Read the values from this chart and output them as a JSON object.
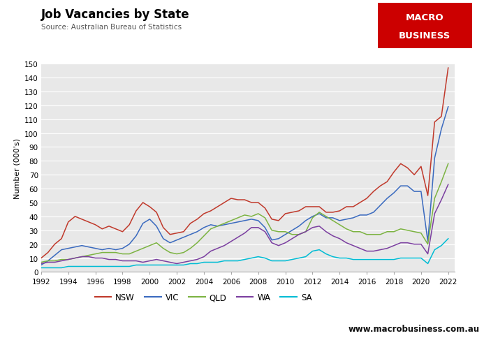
{
  "title": "Job Vacancies by State",
  "subtitle": "Source: Australian Bureau of Statistics",
  "ylabel": "Number (000's)",
  "website": "www.macrobusiness.com.au",
  "fig_bg_color": "#ffffff",
  "plot_bg_color": "#e8e8e8",
  "ylim": [
    0,
    150
  ],
  "yticks": [
    0,
    10,
    20,
    30,
    40,
    50,
    60,
    70,
    80,
    90,
    100,
    110,
    120,
    130,
    140,
    150
  ],
  "colors": {
    "NSW": "#c0392b",
    "VIC": "#3a6abf",
    "QLD": "#7cb342",
    "WA": "#7b3fa0",
    "SA": "#00bcd4"
  },
  "series": {
    "NSW": {
      "years": [
        1992.0,
        1992.5,
        1993.0,
        1993.5,
        1994.0,
        1994.5,
        1995.0,
        1995.5,
        1996.0,
        1996.5,
        1997.0,
        1997.5,
        1998.0,
        1998.5,
        1999.0,
        1999.5,
        2000.0,
        2000.5,
        2001.0,
        2001.5,
        2002.0,
        2002.5,
        2003.0,
        2003.5,
        2004.0,
        2004.5,
        2005.0,
        2005.5,
        2006.0,
        2006.5,
        2007.0,
        2007.5,
        2008.0,
        2008.5,
        2009.0,
        2009.5,
        2010.0,
        2010.5,
        2011.0,
        2011.5,
        2012.0,
        2012.5,
        2013.0,
        2013.5,
        2014.0,
        2014.5,
        2015.0,
        2015.5,
        2016.0,
        2016.5,
        2017.0,
        2017.5,
        2018.0,
        2018.5,
        2019.0,
        2019.5,
        2020.0,
        2020.5,
        2021.0,
        2021.5,
        2022.0
      ],
      "values": [
        10,
        14,
        20,
        24,
        36,
        40,
        38,
        36,
        34,
        31,
        33,
        31,
        29,
        34,
        44,
        50,
        47,
        43,
        32,
        27,
        28,
        29,
        35,
        38,
        42,
        44,
        47,
        50,
        53,
        52,
        52,
        50,
        50,
        46,
        38,
        37,
        42,
        43,
        44,
        47,
        47,
        47,
        43,
        43,
        44,
        47,
        47,
        50,
        53,
        58,
        62,
        65,
        72,
        78,
        75,
        70,
        76,
        55,
        108,
        112,
        147
      ]
    },
    "VIC": {
      "years": [
        1992.0,
        1992.5,
        1993.0,
        1993.5,
        1994.0,
        1994.5,
        1995.0,
        1995.5,
        1996.0,
        1996.5,
        1997.0,
        1997.5,
        1998.0,
        1998.5,
        1999.0,
        1999.5,
        2000.0,
        2000.5,
        2001.0,
        2001.5,
        2002.0,
        2002.5,
        2003.0,
        2003.5,
        2004.0,
        2004.5,
        2005.0,
        2005.5,
        2006.0,
        2006.5,
        2007.0,
        2007.5,
        2008.0,
        2008.5,
        2009.0,
        2009.5,
        2010.0,
        2010.5,
        2011.0,
        2011.5,
        2012.0,
        2012.5,
        2013.0,
        2013.5,
        2014.0,
        2014.5,
        2015.0,
        2015.5,
        2016.0,
        2016.5,
        2017.0,
        2017.5,
        2018.0,
        2018.5,
        2019.0,
        2019.5,
        2020.0,
        2020.5,
        2021.0,
        2021.5,
        2022.0
      ],
      "values": [
        5,
        8,
        12,
        16,
        17,
        18,
        19,
        18,
        17,
        16,
        17,
        16,
        17,
        20,
        26,
        35,
        38,
        33,
        24,
        21,
        23,
        25,
        27,
        29,
        32,
        34,
        33,
        34,
        35,
        36,
        37,
        38,
        37,
        32,
        23,
        24,
        27,
        30,
        33,
        37,
        40,
        42,
        39,
        39,
        37,
        38,
        39,
        41,
        41,
        43,
        48,
        53,
        57,
        62,
        62,
        58,
        58,
        22,
        82,
        103,
        119
      ]
    },
    "QLD": {
      "years": [
        1992.0,
        1992.5,
        1993.0,
        1993.5,
        1994.0,
        1994.5,
        1995.0,
        1995.5,
        1996.0,
        1996.5,
        1997.0,
        1997.5,
        1998.0,
        1998.5,
        1999.0,
        1999.5,
        2000.0,
        2000.5,
        2001.0,
        2001.5,
        2002.0,
        2002.5,
        2003.0,
        2003.5,
        2004.0,
        2004.5,
        2005.0,
        2005.5,
        2006.0,
        2006.5,
        2007.0,
        2007.5,
        2008.0,
        2008.5,
        2009.0,
        2009.5,
        2010.0,
        2010.5,
        2011.0,
        2011.5,
        2012.0,
        2012.5,
        2013.0,
        2013.5,
        2014.0,
        2014.5,
        2015.0,
        2015.5,
        2016.0,
        2016.5,
        2017.0,
        2017.5,
        2018.0,
        2018.5,
        2019.0,
        2019.5,
        2020.0,
        2020.5,
        2021.0,
        2021.5,
        2022.0
      ],
      "values": [
        7,
        8,
        8,
        9,
        9,
        10,
        11,
        12,
        13,
        14,
        14,
        14,
        13,
        13,
        15,
        17,
        19,
        21,
        17,
        14,
        13,
        14,
        17,
        21,
        26,
        31,
        33,
        35,
        37,
        39,
        41,
        40,
        42,
        39,
        30,
        29,
        29,
        27,
        27,
        29,
        39,
        43,
        40,
        37,
        34,
        31,
        29,
        29,
        27,
        27,
        27,
        29,
        29,
        31,
        30,
        29,
        28,
        20,
        53,
        65,
        78
      ]
    },
    "WA": {
      "years": [
        1992.0,
        1992.5,
        1993.0,
        1993.5,
        1994.0,
        1994.5,
        1995.0,
        1995.5,
        1996.0,
        1996.5,
        1997.0,
        1997.5,
        1998.0,
        1998.5,
        1999.0,
        1999.5,
        2000.0,
        2000.5,
        2001.0,
        2001.5,
        2002.0,
        2002.5,
        2003.0,
        2003.5,
        2004.0,
        2004.5,
        2005.0,
        2005.5,
        2006.0,
        2006.5,
        2007.0,
        2007.5,
        2008.0,
        2008.5,
        2009.0,
        2009.5,
        2010.0,
        2010.5,
        2011.0,
        2011.5,
        2012.0,
        2012.5,
        2013.0,
        2013.5,
        2014.0,
        2014.5,
        2015.0,
        2015.5,
        2016.0,
        2016.5,
        2017.0,
        2017.5,
        2018.0,
        2018.5,
        2019.0,
        2019.5,
        2020.0,
        2020.5,
        2021.0,
        2021.5,
        2022.0
      ],
      "values": [
        6,
        7,
        7,
        8,
        9,
        10,
        11,
        11,
        10,
        10,
        9,
        9,
        8,
        8,
        8,
        7,
        8,
        9,
        8,
        7,
        6,
        7,
        8,
        9,
        11,
        15,
        17,
        19,
        22,
        25,
        28,
        32,
        32,
        29,
        21,
        19,
        21,
        24,
        27,
        29,
        32,
        33,
        29,
        26,
        24,
        21,
        19,
        17,
        15,
        15,
        16,
        17,
        19,
        21,
        21,
        20,
        20,
        13,
        42,
        52,
        63
      ]
    },
    "SA": {
      "years": [
        1992.0,
        1992.5,
        1993.0,
        1993.5,
        1994.0,
        1994.5,
        1995.0,
        1995.5,
        1996.0,
        1996.5,
        1997.0,
        1997.5,
        1998.0,
        1998.5,
        1999.0,
        1999.5,
        2000.0,
        2000.5,
        2001.0,
        2001.5,
        2002.0,
        2002.5,
        2003.0,
        2003.5,
        2004.0,
        2004.5,
        2005.0,
        2005.5,
        2006.0,
        2006.5,
        2007.0,
        2007.5,
        2008.0,
        2008.5,
        2009.0,
        2009.5,
        2010.0,
        2010.5,
        2011.0,
        2011.5,
        2012.0,
        2012.5,
        2013.0,
        2013.5,
        2014.0,
        2014.5,
        2015.0,
        2015.5,
        2016.0,
        2016.5,
        2017.0,
        2017.5,
        2018.0,
        2018.5,
        2019.0,
        2019.5,
        2020.0,
        2020.5,
        2021.0,
        2021.5,
        2022.0
      ],
      "values": [
        3,
        3,
        3,
        3,
        4,
        4,
        4,
        4,
        4,
        4,
        4,
        4,
        4,
        4,
        5,
        5,
        5,
        5,
        5,
        5,
        5,
        5,
        6,
        6,
        7,
        7,
        7,
        8,
        8,
        8,
        9,
        10,
        11,
        10,
        8,
        8,
        8,
        9,
        10,
        11,
        15,
        16,
        13,
        11,
        10,
        10,
        9,
        9,
        9,
        9,
        9,
        9,
        9,
        10,
        10,
        10,
        10,
        6,
        16,
        19,
        24
      ]
    }
  }
}
